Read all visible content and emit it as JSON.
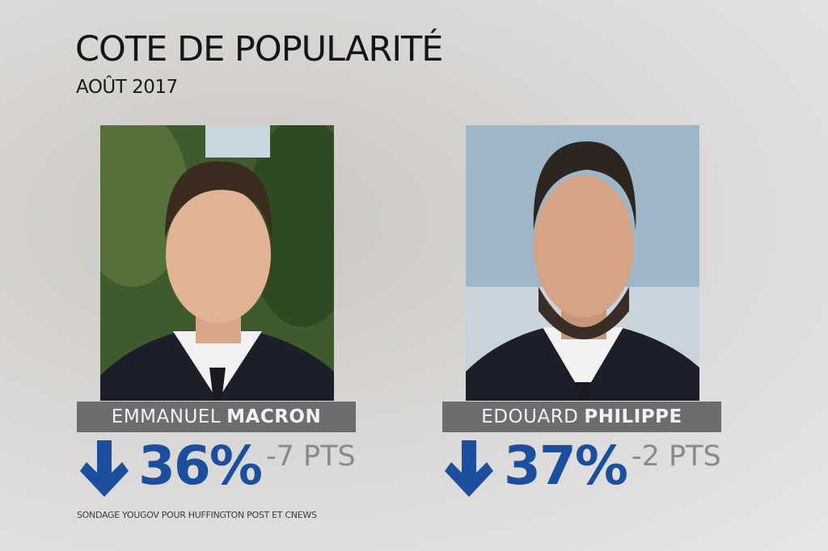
{
  "header": {
    "title": "COTE DE POPULARITÉ",
    "subtitle": "AOÛT 2017"
  },
  "people": [
    {
      "first_name": "EMMANUEL",
      "last_name": "MACRON",
      "score": "36%",
      "change": "-7 PTS"
    },
    {
      "first_name": "EDOUARD",
      "last_name": "PHILIPPE",
      "score": "37%",
      "change": "-2 PTS"
    }
  ],
  "source": "SONDAGE YOUGOV POUR HUFFINGTON POST ET CNEWS"
}
